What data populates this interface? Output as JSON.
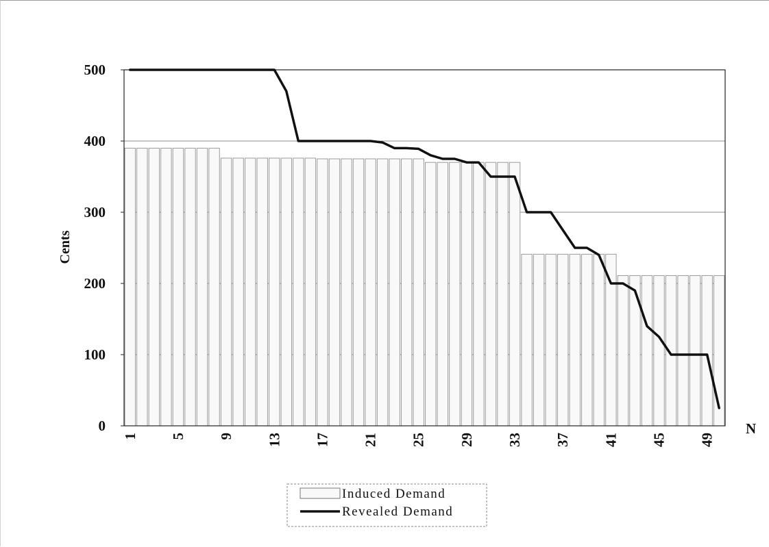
{
  "chart_data": {
    "type": "bar",
    "title": "",
    "ylabel": "Cents",
    "xlabel": "N",
    "ylim": [
      0,
      500
    ],
    "yticks": [
      0,
      100,
      200,
      300,
      400,
      500
    ],
    "x": [
      1,
      2,
      3,
      4,
      5,
      6,
      7,
      8,
      9,
      10,
      11,
      12,
      13,
      14,
      15,
      16,
      17,
      18,
      19,
      20,
      21,
      22,
      23,
      24,
      25,
      26,
      27,
      28,
      29,
      30,
      31,
      32,
      33,
      34,
      35,
      36,
      37,
      38,
      39,
      40,
      41,
      42,
      43,
      44,
      45,
      46,
      47,
      48,
      49,
      50
    ],
    "xtick_labels": [
      "1",
      "5",
      "9",
      "13",
      "17",
      "21",
      "25",
      "29",
      "33",
      "37",
      "41",
      "45",
      "49"
    ],
    "grid": "horizontal",
    "legend_position": "bottom-center",
    "series": [
      {
        "name": "Induced Demand",
        "type": "bar",
        "values": [
          390,
          390,
          390,
          390,
          390,
          390,
          390,
          390,
          376,
          376,
          376,
          376,
          376,
          376,
          376,
          376,
          375,
          375,
          375,
          375,
          375,
          375,
          375,
          375,
          375,
          370,
          370,
          370,
          370,
          370,
          370,
          370,
          370,
          241,
          241,
          241,
          241,
          241,
          241,
          241,
          241,
          211,
          211,
          211,
          211,
          211,
          211,
          211,
          211,
          211
        ]
      },
      {
        "name": "Revealed Demand",
        "type": "line",
        "values": [
          500,
          500,
          500,
          500,
          500,
          500,
          500,
          500,
          500,
          500,
          500,
          500,
          500,
          470,
          400,
          400,
          400,
          400,
          400,
          400,
          400,
          398,
          390,
          390,
          389,
          380,
          375,
          375,
          370,
          370,
          350,
          350,
          350,
          300,
          300,
          300,
          275,
          250,
          250,
          240,
          200,
          200,
          190,
          140,
          125,
          100,
          100,
          100,
          100,
          25
        ]
      }
    ]
  },
  "colors": {
    "bar_fill": "#f9f9f9",
    "bar_stroke": "#9a9a9a",
    "line": "#111111",
    "grid": "#8c8c8c",
    "axis": "#222222"
  }
}
